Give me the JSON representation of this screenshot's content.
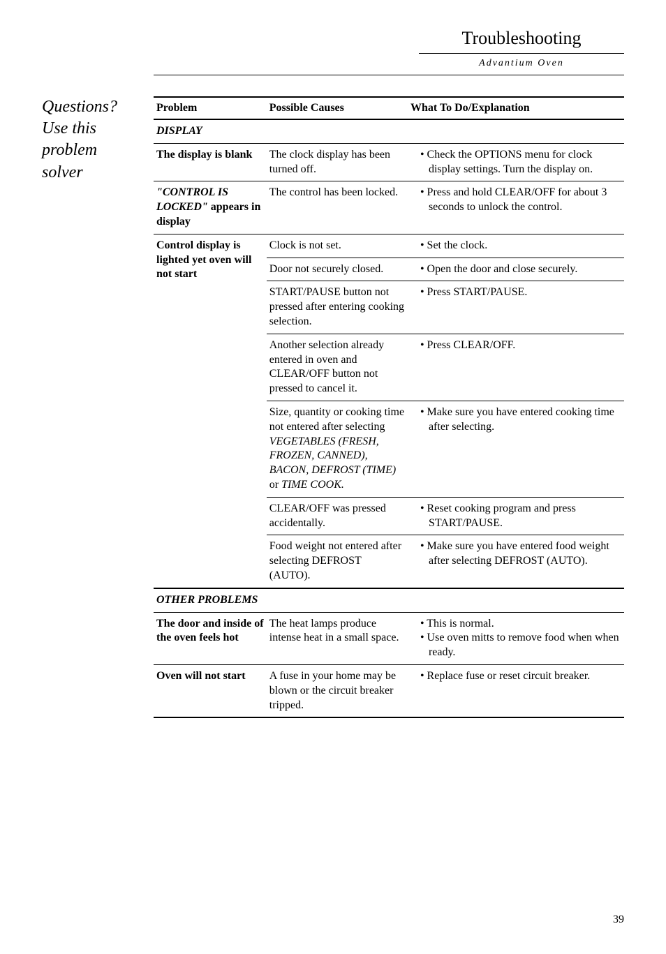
{
  "header": {
    "title": "Troubleshooting",
    "subtitle": "Advantium Oven"
  },
  "sidebar": {
    "line1": "Questions?",
    "line2": "Use this",
    "line3": "problem",
    "line4": "solver"
  },
  "columns": {
    "c1": "Problem",
    "c2": "Possible Causes",
    "c3": "What To Do/Explanation"
  },
  "sections": {
    "display": "DISPLAY",
    "other": "OTHER PROBLEMS"
  },
  "rows": {
    "r1": {
      "problem": "The display is blank",
      "cause": "The clock display has been turned off.",
      "fix1": "Check the OPTIONS menu for clock display settings. Turn the display on."
    },
    "r2": {
      "problem_a": "\"CONTROL IS LOCKED\"",
      "problem_b": " appears in display",
      "cause": "The control has been locked.",
      "fix1": "Press and hold CLEAR/OFF for about 3 seconds to unlock the control."
    },
    "r3": {
      "problem": "Control display is lighted yet oven will not start",
      "a_cause": "Clock is not set.",
      "a_fix": "Set the clock.",
      "b_cause": "Door not securely closed.",
      "b_fix": "Open the door and close securely.",
      "c_cause": "START/PAUSE button not pressed after entering cooking selection.",
      "c_fix": "Press START/PAUSE.",
      "d_cause": "Another selection already entered in oven and CLEAR/OFF button not pressed to cancel it.",
      "d_fix": "Press CLEAR/OFF.",
      "e_cause_a": "Size, quantity or cooking time not entered after selecting ",
      "e_cause_b": "VEGETABLES (FRESH, FROZEN, CANNED), BACON, DEFROST (TIME)",
      "e_cause_c": " or ",
      "e_cause_d": "TIME COOK.",
      "e_fix": "Make sure you have entered cooking time after selecting.",
      "f_cause": "CLEAR/OFF was pressed accidentally.",
      "f_fix": "Reset cooking program and press START/PAUSE.",
      "g_cause": "Food weight not entered after selecting DEFROST (AUTO).",
      "g_fix": "Make sure you have entered food weight after selecting DEFROST (AUTO)."
    },
    "r4": {
      "problem": "The door and inside of the oven feels hot",
      "cause": "The heat lamps produce intense heat in a small space.",
      "fix1": "This is normal.",
      "fix2": "Use oven mitts to remove food when when ready."
    },
    "r5": {
      "problem": "Oven will not start",
      "cause": "A fuse in your home may be blown or the circuit breaker tripped.",
      "fix1": "Replace fuse or reset circuit breaker."
    }
  },
  "pagenum": "39"
}
